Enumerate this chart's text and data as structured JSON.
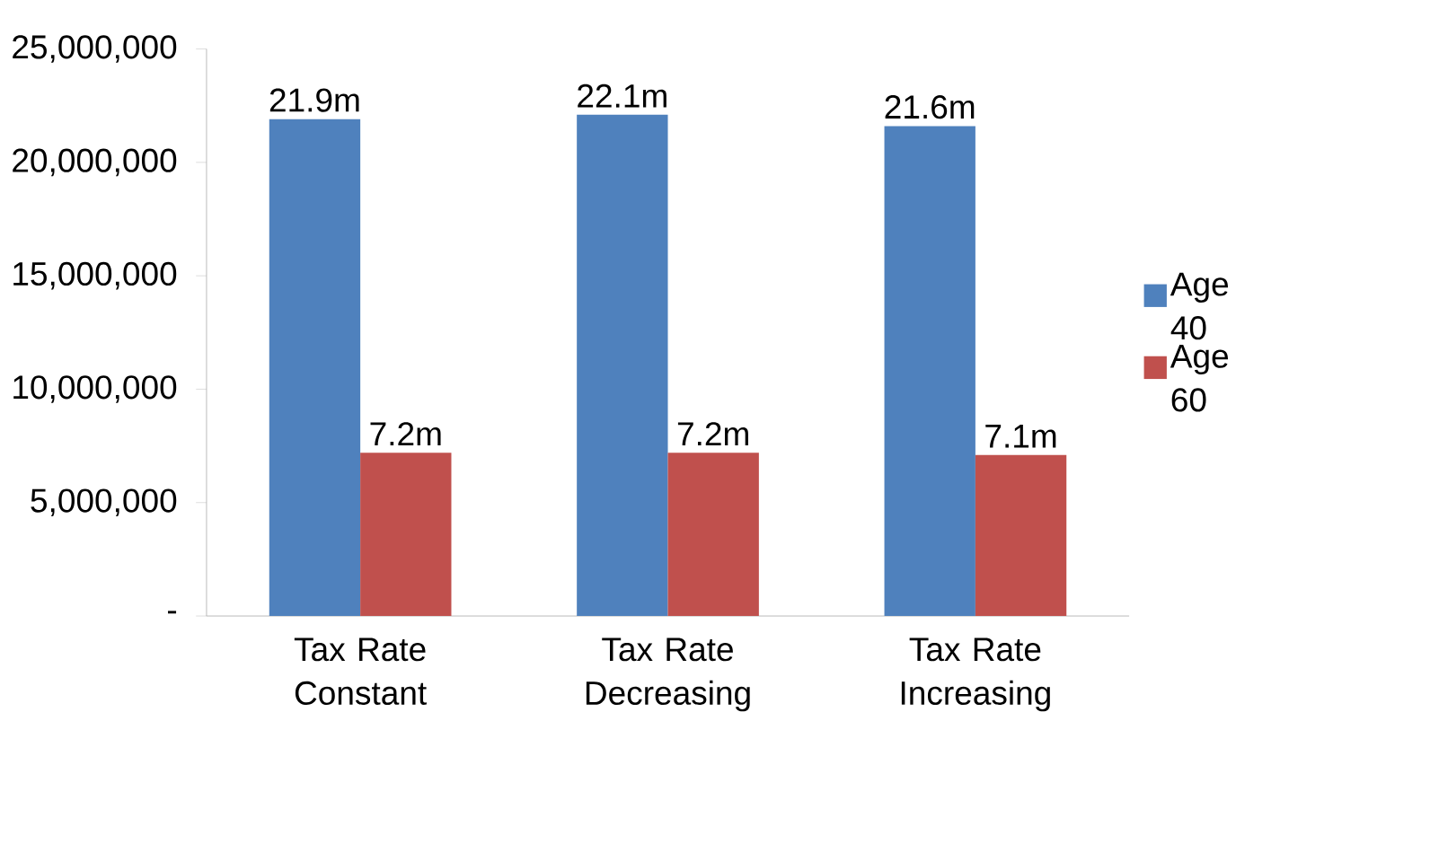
{
  "chart_data": {
    "type": "bar",
    "categories": [
      "Tax Rate Constant",
      "Tax Rate Decreasing",
      "Tax Rate Increasing"
    ],
    "series": [
      {
        "name": "Age 40",
        "color": "#4f81bd",
        "values": [
          21900000,
          22100000,
          21600000
        ],
        "value_labels": [
          "21.9m",
          "22.1m",
          "21.6m"
        ]
      },
      {
        "name": "Age 60",
        "color": "#c0504d",
        "values": [
          7200000,
          7200000,
          7100000
        ],
        "value_labels": [
          "7.2m",
          "7.2m",
          "7.1m"
        ]
      }
    ],
    "ylim": [
      0,
      25000000
    ],
    "yticks": [
      {
        "value": 0,
        "label": "-"
      },
      {
        "value": 5000000,
        "label": "5,000,000"
      },
      {
        "value": 10000000,
        "label": "10,000,000"
      },
      {
        "value": 15000000,
        "label": "15,000,000"
      },
      {
        "value": 20000000,
        "label": "20,000,000"
      },
      {
        "value": 25000000,
        "label": "25,000,000"
      }
    ],
    "grid": false,
    "legend": "right"
  }
}
